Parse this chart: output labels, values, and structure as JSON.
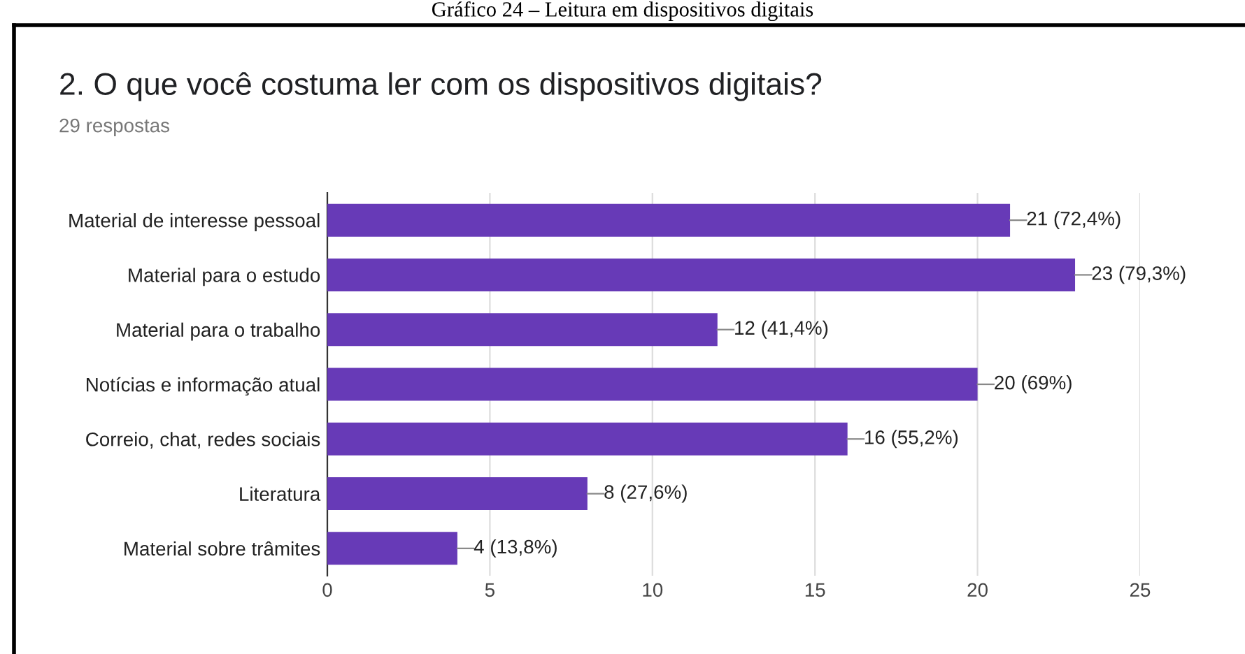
{
  "chart_data": {
    "type": "bar",
    "orientation": "horizontal",
    "title": "2. O que você costuma ler com os dispositivos digitais?",
    "subtitle": "29 respostas",
    "annotations": [
      "Gráfico 24 – Leitura em dispositivos digitais"
    ],
    "categories": [
      "Material de interesse pessoal",
      "Material para o estudo",
      "Material para o trabalho",
      "Notícias e informação atual",
      "Correio, chat, redes sociais",
      "Literatura",
      "Material sobre trâmites"
    ],
    "values": [
      21,
      23,
      12,
      20,
      16,
      8,
      4
    ],
    "value_labels": [
      "21 (72,4%)",
      "23 (79,3%)",
      "12 (41,4%)",
      "20 (69%)",
      "16 (55,2%)",
      "8 (27,6%)",
      "4 (13,8%)"
    ],
    "color": "#673ab7",
    "xlim": [
      0,
      25
    ],
    "xticks": [
      0,
      5,
      10,
      15,
      20,
      25
    ],
    "grid": "x"
  }
}
